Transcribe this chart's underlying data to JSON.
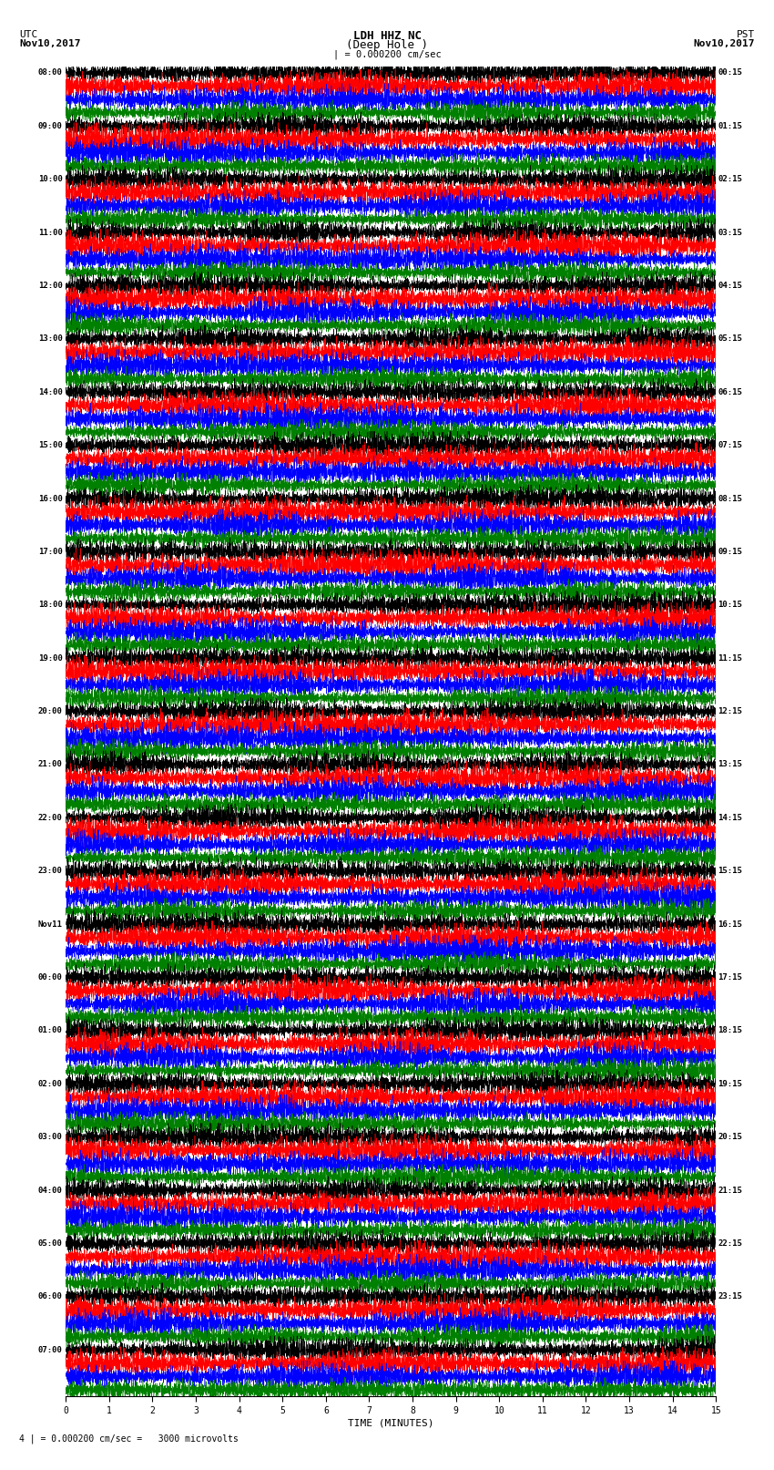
{
  "title_line1": "LDH HHZ NC",
  "title_line2": "(Deep Hole )",
  "title_scale": "| = 0.000200 cm/sec",
  "left_header_line1": "UTC",
  "left_header_line2": "Nov10,2017",
  "right_header_line1": "PST",
  "right_header_line2": "Nov10,2017",
  "bottom_label": "TIME (MINUTES)",
  "bottom_note": "4 | = 0.000200 cm/sec =   3000 microvolts",
  "xlabel_ticks": [
    0,
    1,
    2,
    3,
    4,
    5,
    6,
    7,
    8,
    9,
    10,
    11,
    12,
    13,
    14,
    15
  ],
  "left_times": [
    "08:00",
    "09:00",
    "10:00",
    "11:00",
    "12:00",
    "13:00",
    "14:00",
    "15:00",
    "16:00",
    "17:00",
    "18:00",
    "19:00",
    "20:00",
    "21:00",
    "22:00",
    "23:00",
    "Nov11",
    "00:00",
    "01:00",
    "02:00",
    "03:00",
    "04:00",
    "05:00",
    "06:00",
    "07:00"
  ],
  "right_times": [
    "00:15",
    "01:15",
    "02:15",
    "03:15",
    "04:15",
    "05:15",
    "06:15",
    "07:15",
    "08:15",
    "09:15",
    "10:15",
    "11:15",
    "12:15",
    "13:15",
    "14:15",
    "15:15",
    "16:15",
    "17:15",
    "18:15",
    "19:15",
    "20:15",
    "21:15",
    "22:15",
    "23:15"
  ],
  "num_rows": 25,
  "traces_per_row": 4,
  "trace_colors": [
    "#000000",
    "#ff0000",
    "#0000ff",
    "#008000"
  ],
  "bg_color": "#ffffff",
  "fig_width": 8.5,
  "fig_height": 16.13,
  "dpi": 100,
  "seed": 42
}
